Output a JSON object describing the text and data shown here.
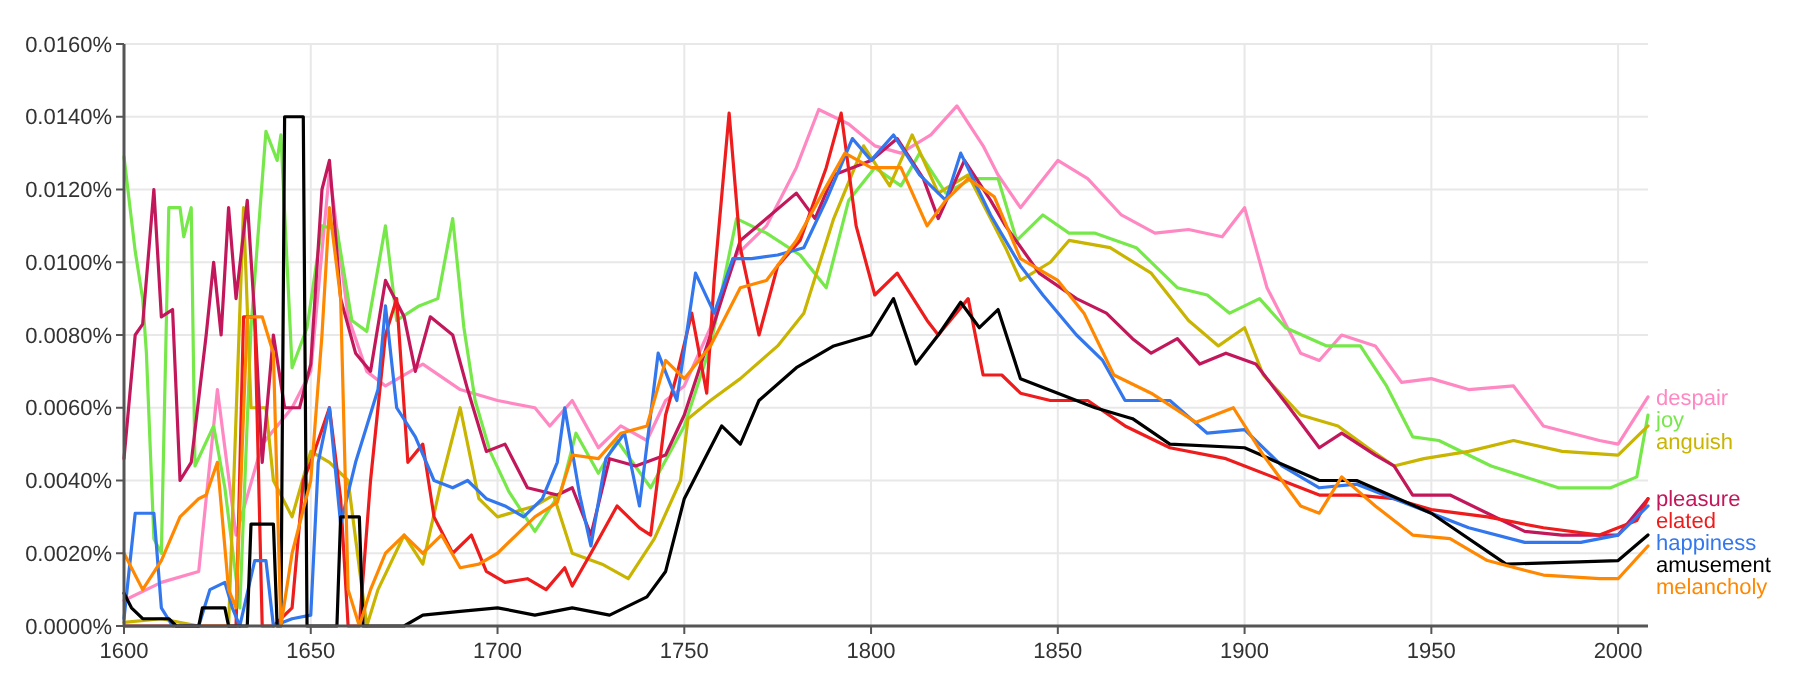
{
  "chart_data": {
    "type": "line",
    "xlim": [
      1600,
      2008
    ],
    "xticks": [
      1600,
      1650,
      1700,
      1750,
      1800,
      1850,
      1900,
      1950,
      2000
    ],
    "ylim": [
      0,
      0.016
    ],
    "yticks": [
      {
        "value": 0,
        "label": "0.0000%"
      },
      {
        "value": 0.002,
        "label": "0.0020%"
      },
      {
        "value": 0.004,
        "label": "0.0040%"
      },
      {
        "value": 0.006,
        "label": "0.0060%"
      },
      {
        "value": 0.008,
        "label": "0.0080%"
      },
      {
        "value": 0.01,
        "label": "0.0100%"
      },
      {
        "value": 0.012,
        "label": "0.0120%"
      },
      {
        "value": 0.014,
        "label": "0.0140%"
      },
      {
        "value": 0.016,
        "label": "0.0160%"
      }
    ],
    "grid": true,
    "series": [
      {
        "name": "despair",
        "color": "#ff88c2",
        "x": [
          1600,
          1610,
          1620,
          1625,
          1630,
          1637,
          1645,
          1650,
          1655,
          1660,
          1665,
          1670,
          1680,
          1690,
          1700,
          1710,
          1714,
          1720,
          1727,
          1733,
          1740,
          1745,
          1750,
          1757,
          1764,
          1772,
          1780,
          1786,
          1794,
          1801,
          1808,
          1816,
          1823,
          1830,
          1834,
          1840,
          1850,
          1858,
          1867,
          1876,
          1885,
          1894,
          1900,
          1906,
          1915,
          1920,
          1926,
          1935,
          1942,
          1950,
          1960,
          1972,
          1980,
          1995,
          2000,
          2008
        ],
        "values": [
          0.0007,
          0.0012,
          0.0015,
          0.0065,
          0.0025,
          0.005,
          0.006,
          0.007,
          0.0125,
          0.0085,
          0.007,
          0.0066,
          0.0072,
          0.0065,
          0.0062,
          0.006,
          0.0055,
          0.0062,
          0.0049,
          0.0055,
          0.0051,
          0.0062,
          0.0066,
          0.0082,
          0.0102,
          0.011,
          0.0126,
          0.0142,
          0.0138,
          0.0132,
          0.013,
          0.0135,
          0.0143,
          0.0132,
          0.0124,
          0.0115,
          0.0128,
          0.0123,
          0.0113,
          0.0108,
          0.0109,
          0.0107,
          0.0115,
          0.0093,
          0.0075,
          0.0073,
          0.008,
          0.0077,
          0.0067,
          0.0068,
          0.0065,
          0.0066,
          0.0055,
          0.0051,
          0.005,
          0.0063
        ]
      },
      {
        "name": "joy",
        "color": "#77e84a",
        "x": [
          1600,
          1603,
          1605,
          1606,
          1608,
          1610,
          1612,
          1615,
          1616,
          1618,
          1619,
          1624,
          1627,
          1631,
          1634,
          1638,
          1641,
          1642,
          1645,
          1649,
          1653,
          1657,
          1661,
          1665,
          1670,
          1673,
          1679,
          1684,
          1688,
          1691,
          1694,
          1698,
          1703,
          1710,
          1717,
          1721,
          1727,
          1732,
          1741,
          1750,
          1757,
          1764,
          1772,
          1781,
          1788,
          1794,
          1801,
          1808,
          1813,
          1820,
          1827,
          1834,
          1839,
          1846,
          1853,
          1860,
          1871,
          1882,
          1890,
          1896,
          1904,
          1911,
          1922,
          1931,
          1938,
          1945,
          1952,
          1966,
          1984,
          1998,
          2005,
          2008
        ],
        "values": [
          0.0129,
          0.0103,
          0.009,
          0.0075,
          0.0024,
          0.002,
          0.0115,
          0.0115,
          0.0107,
          0.0115,
          0.0044,
          0.0055,
          0.0038,
          0.0005,
          0.0082,
          0.0136,
          0.0128,
          0.0135,
          0.0071,
          0.0082,
          0.011,
          0.0109,
          0.0084,
          0.0081,
          0.011,
          0.0084,
          0.0088,
          0.009,
          0.0112,
          0.0082,
          0.0062,
          0.0048,
          0.0037,
          0.0026,
          0.0037,
          0.0053,
          0.0042,
          0.0051,
          0.0038,
          0.0055,
          0.0077,
          0.0112,
          0.0108,
          0.0102,
          0.0093,
          0.0117,
          0.0126,
          0.0121,
          0.013,
          0.0119,
          0.0123,
          0.0123,
          0.0106,
          0.0113,
          0.0108,
          0.0108,
          0.0104,
          0.0093,
          0.0091,
          0.0086,
          0.009,
          0.0082,
          0.0077,
          0.0077,
          0.0066,
          0.0052,
          0.0051,
          0.0044,
          0.0038,
          0.0038,
          0.0041,
          0.0058
        ]
      },
      {
        "name": "anguish",
        "color": "#c9b400",
        "x": [
          1600,
          1610,
          1620,
          1628,
          1632,
          1634,
          1638,
          1640,
          1645,
          1650,
          1655,
          1660,
          1665,
          1668,
          1675,
          1680,
          1685,
          1690,
          1695,
          1700,
          1710,
          1715,
          1720,
          1728,
          1735,
          1742,
          1749,
          1751,
          1757,
          1765,
          1775,
          1782,
          1790,
          1798,
          1805,
          1811,
          1818,
          1826,
          1832,
          1836,
          1840,
          1848,
          1853,
          1864,
          1875,
          1885,
          1893,
          1900,
          1905,
          1915,
          1925,
          1933,
          1940,
          1948,
          1960,
          1972,
          1985,
          2000,
          2008
        ],
        "values": [
          0.0001,
          0.0002,
          0,
          0,
          0.0115,
          0.006,
          0.006,
          0.004,
          0.003,
          0.0048,
          0.0045,
          0.004,
          0,
          0.001,
          0.0025,
          0.0017,
          0.004,
          0.006,
          0.0035,
          0.003,
          0.0033,
          0.0036,
          0.002,
          0.0017,
          0.0013,
          0.0024,
          0.004,
          0.0057,
          0.0062,
          0.0068,
          0.0077,
          0.0086,
          0.0112,
          0.0132,
          0.0121,
          0.0135,
          0.0119,
          0.0124,
          0.0112,
          0.0104,
          0.0095,
          0.01,
          0.0106,
          0.0104,
          0.0097,
          0.0084,
          0.0077,
          0.0082,
          0.0069,
          0.0058,
          0.0055,
          0.0049,
          0.0044,
          0.0046,
          0.0048,
          0.0051,
          0.0048,
          0.0047,
          0.0055
        ]
      },
      {
        "name": "pleasure",
        "color": "#c2185b",
        "x": [
          1600,
          1603,
          1605,
          1608,
          1610,
          1613,
          1615,
          1618,
          1622,
          1624,
          1626,
          1628,
          1630,
          1633,
          1635,
          1637,
          1640,
          1643,
          1647,
          1650,
          1653,
          1655,
          1658,
          1662,
          1666,
          1670,
          1675,
          1678,
          1682,
          1688,
          1692,
          1697,
          1702,
          1708,
          1716,
          1720,
          1725,
          1730,
          1737,
          1745,
          1750,
          1757,
          1765,
          1772,
          1780,
          1785,
          1790,
          1800,
          1807,
          1814,
          1818,
          1825,
          1832,
          1836,
          1845,
          1855,
          1863,
          1870,
          1875,
          1882,
          1888,
          1895,
          1903,
          1912,
          1920,
          1926,
          1935,
          1940,
          1945,
          1955,
          1965,
          1975,
          1985,
          2000,
          2008
        ],
        "values": [
          0.0046,
          0.008,
          0.0083,
          0.012,
          0.0085,
          0.0087,
          0.004,
          0.0045,
          0.008,
          0.01,
          0.008,
          0.0115,
          0.009,
          0.0117,
          0.0085,
          0.0045,
          0.008,
          0.006,
          0.006,
          0.0072,
          0.012,
          0.0128,
          0.009,
          0.0075,
          0.007,
          0.0095,
          0.0085,
          0.007,
          0.0085,
          0.008,
          0.0065,
          0.0048,
          0.005,
          0.0038,
          0.0036,
          0.0038,
          0.0025,
          0.0046,
          0.0044,
          0.0047,
          0.0058,
          0.008,
          0.0106,
          0.0112,
          0.0119,
          0.0112,
          0.0124,
          0.0128,
          0.0134,
          0.0123,
          0.0112,
          0.0128,
          0.0117,
          0.011,
          0.0097,
          0.009,
          0.0086,
          0.0079,
          0.0075,
          0.0079,
          0.0072,
          0.0075,
          0.0072,
          0.006,
          0.0049,
          0.0053,
          0.0047,
          0.0044,
          0.0036,
          0.0036,
          0.0031,
          0.0026,
          0.0025,
          0.0025,
          0.0035
        ]
      },
      {
        "name": "elated",
        "color": "#ee1c1c",
        "x": [
          1600,
          1625,
          1630,
          1632,
          1635,
          1637,
          1640,
          1645,
          1648,
          1650,
          1655,
          1658,
          1660,
          1663,
          1666,
          1670,
          1673,
          1676,
          1680,
          1683,
          1688,
          1693,
          1697,
          1702,
          1708,
          1713,
          1718,
          1720,
          1725,
          1732,
          1738,
          1741,
          1745,
          1748,
          1752,
          1756,
          1758,
          1762,
          1765,
          1770,
          1775,
          1781,
          1788,
          1792,
          1796,
          1801,
          1807,
          1815,
          1818,
          1826,
          1830,
          1835,
          1840,
          1848,
          1858,
          1868,
          1880,
          1895,
          1900,
          1910,
          1920,
          1930,
          1940,
          1950,
          1965,
          1980,
          1995,
          2005,
          2008
        ],
        "values": [
          0,
          0,
          0,
          0.0085,
          0.0085,
          0,
          0,
          0.0005,
          0.004,
          0.0045,
          0.006,
          0.0035,
          0,
          0,
          0.004,
          0.008,
          0.009,
          0.0045,
          0.005,
          0.003,
          0.002,
          0.0025,
          0.0015,
          0.0012,
          0.0013,
          0.001,
          0.0016,
          0.0011,
          0.002,
          0.0033,
          0.0027,
          0.0025,
          0.0058,
          0.0069,
          0.0086,
          0.0064,
          0.0095,
          0.0141,
          0.0104,
          0.008,
          0.0099,
          0.0106,
          0.0126,
          0.0141,
          0.011,
          0.0091,
          0.0097,
          0.0084,
          0.008,
          0.009,
          0.0069,
          0.0069,
          0.0064,
          0.0062,
          0.0062,
          0.0055,
          0.0049,
          0.0046,
          0.0044,
          0.004,
          0.0036,
          0.0036,
          0.0035,
          0.0032,
          0.003,
          0.0027,
          0.0025,
          0.0029,
          0.0035
        ]
      },
      {
        "name": "happiness",
        "color": "#3377ee",
        "x": [
          1600,
          1603,
          1608,
          1610,
          1613,
          1620,
          1623,
          1627,
          1629,
          1631,
          1635,
          1638,
          1640,
          1645,
          1650,
          1652,
          1655,
          1658,
          1662,
          1665,
          1668,
          1670,
          1673,
          1678,
          1683,
          1688,
          1692,
          1697,
          1702,
          1707,
          1712,
          1716,
          1718,
          1722,
          1725,
          1729,
          1734,
          1738,
          1743,
          1748,
          1753,
          1758,
          1763,
          1768,
          1775,
          1782,
          1788,
          1795,
          1800,
          1806,
          1813,
          1820,
          1824,
          1832,
          1840,
          1846,
          1855,
          1862,
          1868,
          1880,
          1890,
          1900,
          1910,
          1920,
          1930,
          1940,
          1950,
          1960,
          1975,
          1990,
          2000,
          2008
        ],
        "values": [
          0.0002,
          0.0031,
          0.0031,
          0.0005,
          0,
          0,
          0.001,
          0.0012,
          0.0005,
          0,
          0.0018,
          0.0018,
          0,
          0.0002,
          0.0003,
          0.0045,
          0.006,
          0.0028,
          0.0045,
          0.0055,
          0.0065,
          0.0088,
          0.006,
          0.0052,
          0.004,
          0.0038,
          0.004,
          0.0035,
          0.0033,
          0.003,
          0.0035,
          0.0045,
          0.006,
          0.0036,
          0.0022,
          0.0046,
          0.0053,
          0.0033,
          0.0075,
          0.0062,
          0.0097,
          0.0086,
          0.0101,
          0.0101,
          0.0102,
          0.0104,
          0.0117,
          0.0134,
          0.0128,
          0.0135,
          0.0124,
          0.0117,
          0.013,
          0.0113,
          0.0099,
          0.0091,
          0.008,
          0.0073,
          0.0062,
          0.0062,
          0.0053,
          0.0054,
          0.0044,
          0.0038,
          0.0039,
          0.0035,
          0.0031,
          0.0027,
          0.0023,
          0.0023,
          0.0025,
          0.0033
        ]
      },
      {
        "name": "amusement",
        "color": "#000000",
        "x": [
          1600,
          1602,
          1605,
          1612,
          1614,
          1620,
          1621,
          1627,
          1628,
          1633,
          1634,
          1640,
          1641,
          1642,
          1643,
          1648,
          1649,
          1657,
          1658,
          1663,
          1664,
          1675,
          1680,
          1690,
          1700,
          1710,
          1720,
          1730,
          1740,
          1745,
          1750,
          1755,
          1760,
          1765,
          1770,
          1780,
          1790,
          1800,
          1806,
          1812,
          1818,
          1824,
          1829,
          1834,
          1840,
          1850,
          1860,
          1870,
          1880,
          1900,
          1920,
          1930,
          1950,
          1970,
          2000,
          2008
        ],
        "values": [
          0.0009,
          0.0005,
          0.0002,
          0.0002,
          0,
          0,
          0.0005,
          0.0005,
          0,
          0,
          0.0028,
          0.0028,
          0,
          0,
          0.014,
          0.014,
          0,
          0,
          0.003,
          0.003,
          0,
          0,
          0.0003,
          0.0004,
          0.0005,
          0.0003,
          0.0005,
          0.0003,
          0.0008,
          0.0015,
          0.0035,
          0.0045,
          0.0055,
          0.005,
          0.0062,
          0.0071,
          0.0077,
          0.008,
          0.009,
          0.0072,
          0.008,
          0.0089,
          0.0082,
          0.0087,
          0.0068,
          0.0064,
          0.006,
          0.0057,
          0.005,
          0.0049,
          0.004,
          0.004,
          0.0031,
          0.0017,
          0.0018,
          0.0025
        ]
      },
      {
        "name": "melancholy",
        "color": "#ff8800",
        "x": [
          1600,
          1605,
          1610,
          1615,
          1620,
          1622,
          1625,
          1628,
          1630,
          1633,
          1637,
          1640,
          1642,
          1645,
          1650,
          1653,
          1655,
          1658,
          1660,
          1663,
          1666,
          1670,
          1675,
          1680,
          1685,
          1690,
          1695,
          1700,
          1705,
          1710,
          1716,
          1720,
          1727,
          1733,
          1740,
          1745,
          1750,
          1757,
          1765,
          1772,
          1780,
          1787,
          1793,
          1800,
          1808,
          1815,
          1820,
          1826,
          1833,
          1840,
          1850,
          1857,
          1865,
          1875,
          1887,
          1897,
          1905,
          1915,
          1920,
          1926,
          1935,
          1945,
          1955,
          1965,
          1980,
          1995,
          2000,
          2008
        ],
        "values": [
          0.002,
          0.001,
          0.0018,
          0.003,
          0.0035,
          0.0036,
          0.0045,
          0.001,
          0.0005,
          0.0085,
          0.0085,
          0.0075,
          0,
          0.002,
          0.004,
          0.008,
          0.0115,
          0.009,
          0.001,
          0,
          0.001,
          0.002,
          0.0025,
          0.002,
          0.0025,
          0.0016,
          0.0017,
          0.002,
          0.0025,
          0.003,
          0.0034,
          0.0047,
          0.0046,
          0.0053,
          0.0055,
          0.0073,
          0.0068,
          0.0077,
          0.0093,
          0.0095,
          0.0106,
          0.0119,
          0.013,
          0.0126,
          0.0126,
          0.011,
          0.0117,
          0.0123,
          0.0118,
          0.0101,
          0.0095,
          0.0086,
          0.0069,
          0.0064,
          0.0056,
          0.006,
          0.0047,
          0.0033,
          0.0031,
          0.0041,
          0.0033,
          0.0025,
          0.0024,
          0.0018,
          0.0014,
          0.0013,
          0.0013,
          0.0022
        ]
      }
    ]
  }
}
